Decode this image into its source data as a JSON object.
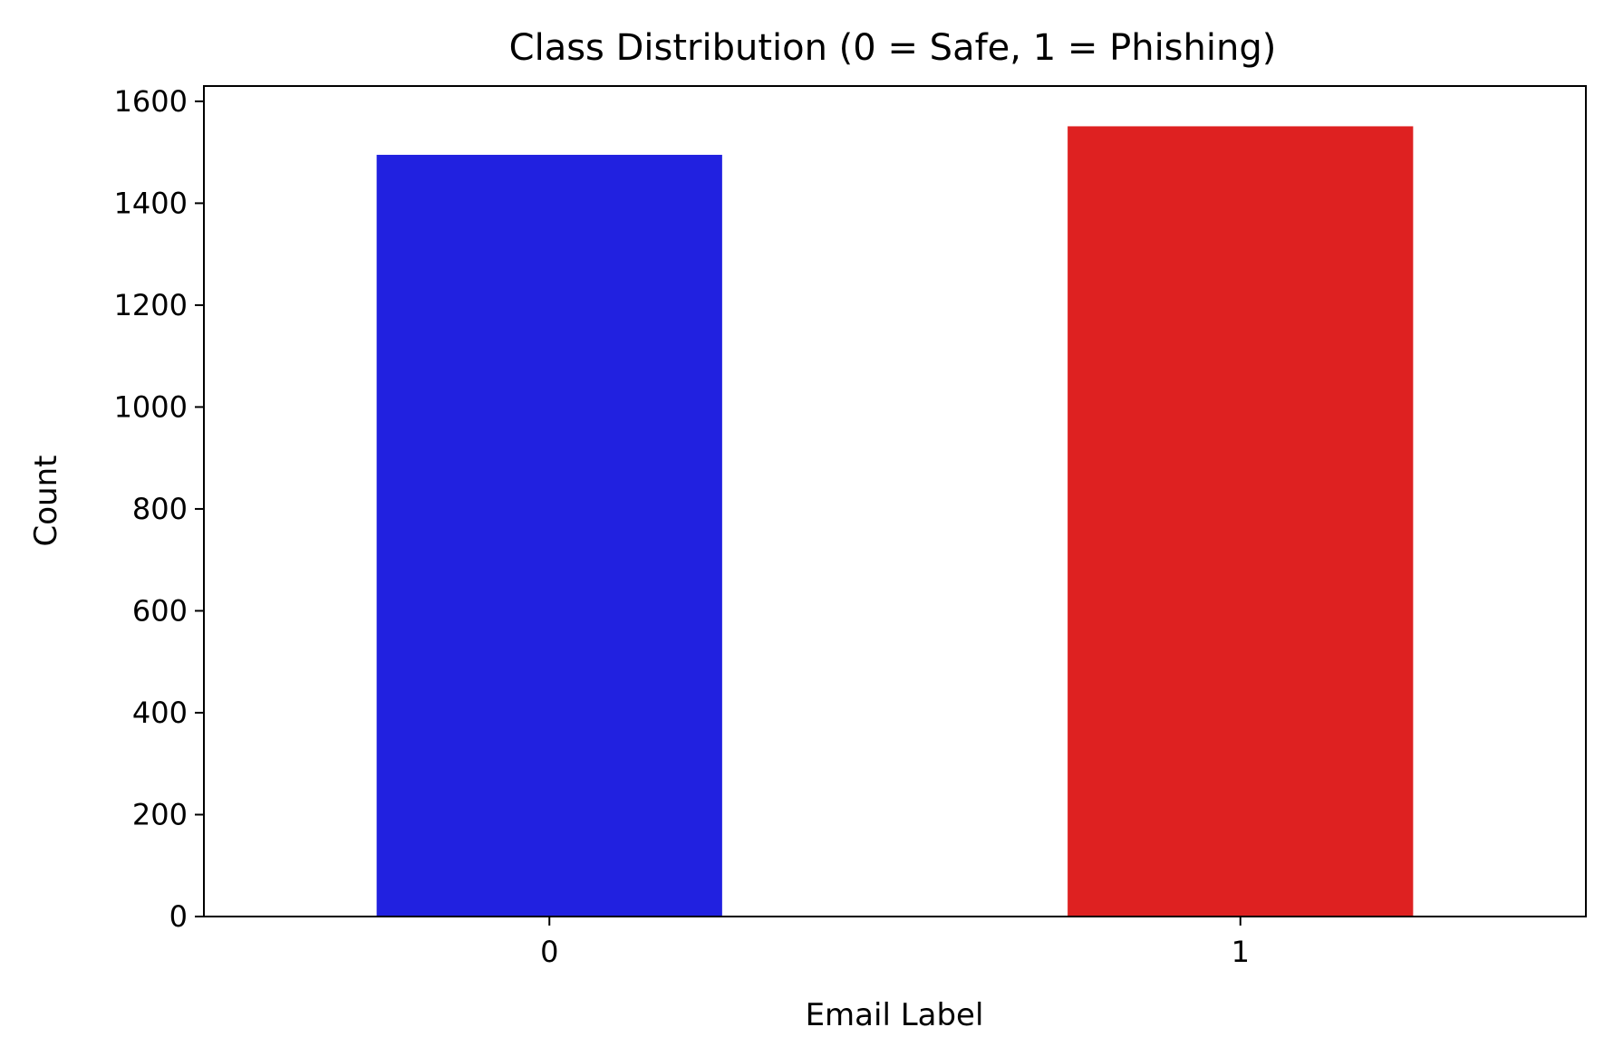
{
  "chart_data": {
    "type": "bar",
    "title": "Class Distribution (0 = Safe, 1 = Phishing)",
    "xlabel": "Email Label",
    "ylabel": "Count",
    "categories": [
      "0",
      "1"
    ],
    "values": [
      1495,
      1551
    ],
    "colors": [
      "#2121e0",
      "#de2121"
    ],
    "ylim": [
      0,
      1630
    ],
    "yticks": [
      0,
      200,
      400,
      600,
      800,
      1000,
      1200,
      1400,
      1600
    ],
    "grid": false
  }
}
